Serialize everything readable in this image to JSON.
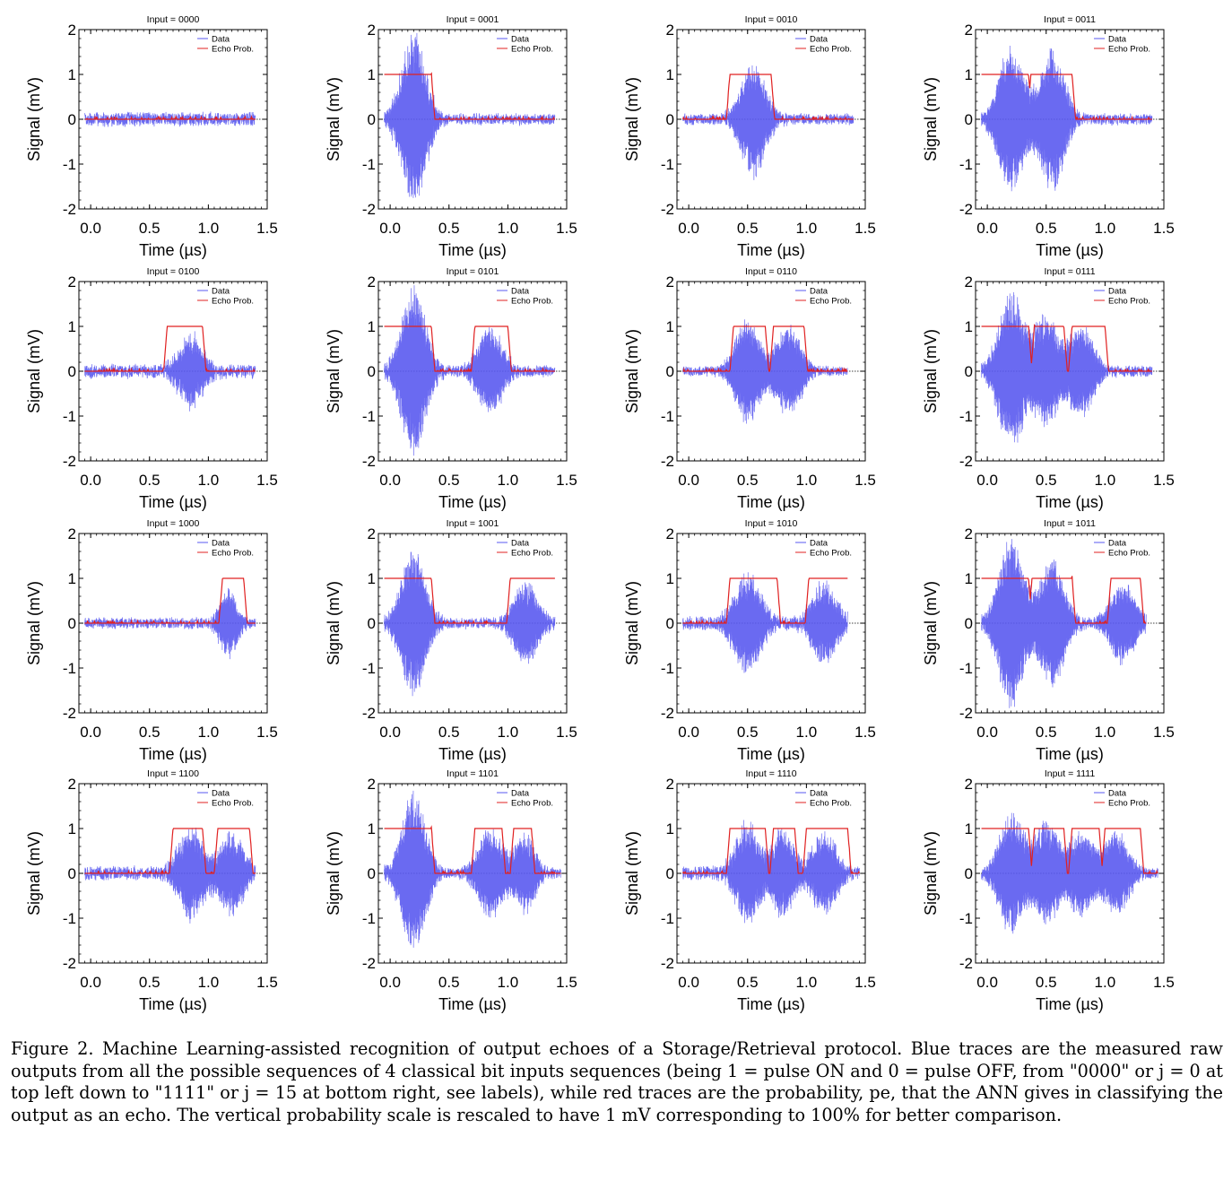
{
  "figure": {
    "caption": "Figure 2. Machine Learning-assisted recognition of output echoes of a Storage/Retrieval protocol. Blue traces are the measured raw outputs from all the possible sequences of 4 classical bit inputs sequences (being 1 = pulse ON and 0 = pulse OFF, from \"0000\" or j = 0 at top left down to \"1111\" or j = 15 at bottom right, see labels), while red traces are the probability, pe, that the ANN gives in classifying the output as an echo. The vertical probability scale is rescaled to have 1 mV corresponding to 100% for better comparison."
  },
  "colors": {
    "data": "#5a5af0",
    "echo_prob": "#e02020",
    "axis": "#000000"
  },
  "chart_data": [
    {
      "type": "line",
      "title": "Input = 0000",
      "xlabel": "Time (µs)",
      "ylabel": "Signal (mV)",
      "xlim": [
        -0.1,
        1.5
      ],
      "ylim": [
        -2,
        2
      ],
      "xticks": [
        "0.0",
        "0.5",
        "1.0",
        "1.5"
      ],
      "yticks": [
        "-2",
        "-1",
        "0",
        "1",
        "2"
      ],
      "legend": [
        "Data",
        "Echo Prob."
      ],
      "legend_position": "top-right",
      "data_range": [
        -0.05,
        1.4
      ],
      "pulses": [],
      "echo_windows": [],
      "noise_mV": 0.1
    },
    {
      "type": "line",
      "title": "Input = 0001",
      "xlabel": "Time (µs)",
      "ylabel": "Signal (mV)",
      "xlim": [
        -0.1,
        1.5
      ],
      "ylim": [
        -2,
        2
      ],
      "xticks": [
        "0.0",
        "0.5",
        "1.0",
        "1.5"
      ],
      "yticks": [
        "-2",
        "-1",
        "0",
        "1",
        "2"
      ],
      "legend": [
        "Data",
        "Echo Prob."
      ],
      "legend_position": "top-right",
      "data_range": [
        -0.05,
        1.4
      ],
      "pulses": [
        {
          "center": 0.2,
          "amplitude": 1.9,
          "width": 0.1
        }
      ],
      "echo_windows": [
        [
          -0.05,
          0.35
        ]
      ],
      "noise_mV": 0.08
    },
    {
      "type": "line",
      "title": "Input = 0010",
      "xlabel": "Time (µs)",
      "ylabel": "Signal (mV)",
      "xlim": [
        -0.1,
        1.5
      ],
      "ylim": [
        -2,
        2
      ],
      "xticks": [
        "0.0",
        "0.5",
        "1.0",
        "1.5"
      ],
      "yticks": [
        "-2",
        "-1",
        "0",
        "1",
        "2"
      ],
      "legend": [
        "Data",
        "Echo Prob."
      ],
      "legend_position": "top-right",
      "data_range": [
        -0.05,
        1.4
      ],
      "pulses": [
        {
          "center": 0.55,
          "amplitude": 1.25,
          "width": 0.1
        }
      ],
      "echo_windows": [
        [
          0.35,
          0.7
        ]
      ],
      "noise_mV": 0.08
    },
    {
      "type": "line",
      "title": "Input = 0011",
      "xlabel": "Time (µs)",
      "ylabel": "Signal (mV)",
      "xlim": [
        -0.1,
        1.5
      ],
      "ylim": [
        -2,
        2
      ],
      "xticks": [
        "0.0",
        "0.5",
        "1.0",
        "1.5"
      ],
      "yticks": [
        "-2",
        "-1",
        "0",
        "1",
        "2"
      ],
      "legend": [
        "Data",
        "Echo Prob."
      ],
      "legend_position": "top-right",
      "data_range": [
        -0.05,
        1.4
      ],
      "pulses": [
        {
          "center": 0.2,
          "amplitude": 1.7,
          "width": 0.1
        },
        {
          "center": 0.55,
          "amplitude": 1.6,
          "width": 0.1
        }
      ],
      "echo_windows": [
        [
          -0.05,
          0.35
        ],
        [
          0.37,
          0.72
        ]
      ],
      "noise_mV": 0.08
    },
    {
      "type": "line",
      "title": "Input = 0100",
      "xlabel": "Time (µs)",
      "ylabel": "Signal (mV)",
      "xlim": [
        -0.1,
        1.5
      ],
      "ylim": [
        -2,
        2
      ],
      "xticks": [
        "0.0",
        "0.5",
        "1.0",
        "1.5"
      ],
      "yticks": [
        "-2",
        "-1",
        "0",
        "1",
        "2"
      ],
      "legend": [
        "Data",
        "Echo Prob."
      ],
      "legend_position": "top-right",
      "data_range": [
        -0.05,
        1.4
      ],
      "pulses": [
        {
          "center": 0.85,
          "amplitude": 0.8,
          "width": 0.1
        }
      ],
      "echo_windows": [
        [
          0.65,
          0.95
        ]
      ],
      "noise_mV": 0.1
    },
    {
      "type": "line",
      "title": "Input = 0101",
      "xlabel": "Time (µs)",
      "ylabel": "Signal (mV)",
      "xlim": [
        -0.1,
        1.5
      ],
      "ylim": [
        -2,
        2
      ],
      "xticks": [
        "0.0",
        "0.5",
        "1.0",
        "1.5"
      ],
      "yticks": [
        "-2",
        "-1",
        "0",
        "1",
        "2"
      ],
      "legend": [
        "Data",
        "Echo Prob."
      ],
      "legend_position": "top-right",
      "data_range": [
        -0.05,
        1.4
      ],
      "pulses": [
        {
          "center": 0.2,
          "amplitude": 1.85,
          "width": 0.1
        },
        {
          "center": 0.85,
          "amplitude": 0.95,
          "width": 0.1
        }
      ],
      "echo_windows": [
        [
          -0.05,
          0.35
        ],
        [
          0.72,
          1.0
        ]
      ],
      "noise_mV": 0.08
    },
    {
      "type": "line",
      "title": "Input = 0110",
      "xlabel": "Time (µs)",
      "ylabel": "Signal (mV)",
      "xlim": [
        -0.1,
        1.5
      ],
      "ylim": [
        -2,
        2
      ],
      "xticks": [
        "0.0",
        "0.5",
        "1.0",
        "1.5"
      ],
      "yticks": [
        "-2",
        "-1",
        "0",
        "1",
        "2"
      ],
      "legend": [
        "Data",
        "Echo Prob."
      ],
      "legend_position": "top-right",
      "data_range": [
        -0.05,
        1.35
      ],
      "pulses": [
        {
          "center": 0.5,
          "amplitude": 1.15,
          "width": 0.1
        },
        {
          "center": 0.85,
          "amplitude": 1.0,
          "width": 0.1
        }
      ],
      "echo_windows": [
        [
          0.38,
          0.65
        ],
        [
          0.72,
          0.98
        ]
      ],
      "noise_mV": 0.07
    },
    {
      "type": "line",
      "title": "Input = 0111",
      "xlabel": "Time (µs)",
      "ylabel": "Signal (mV)",
      "xlim": [
        -0.1,
        1.5
      ],
      "ylim": [
        -2,
        2
      ],
      "xticks": [
        "0.0",
        "0.5",
        "1.0",
        "1.5"
      ],
      "yticks": [
        "-2",
        "-1",
        "0",
        "1",
        "2"
      ],
      "legend": [
        "Data",
        "Echo Prob."
      ],
      "legend_position": "top-right",
      "data_range": [
        -0.05,
        1.4
      ],
      "pulses": [
        {
          "center": 0.2,
          "amplitude": 1.75,
          "width": 0.1
        },
        {
          "center": 0.5,
          "amplitude": 1.2,
          "width": 0.1
        },
        {
          "center": 0.8,
          "amplitude": 1.0,
          "width": 0.1
        }
      ],
      "echo_windows": [
        [
          -0.05,
          0.35
        ],
        [
          0.4,
          0.65
        ],
        [
          0.72,
          1.0
        ]
      ],
      "noise_mV": 0.08
    },
    {
      "type": "line",
      "title": "Input = 1000",
      "xlabel": "Time (µs)",
      "ylabel": "Signal (mV)",
      "xlim": [
        -0.1,
        1.5
      ],
      "ylim": [
        -2,
        2
      ],
      "xticks": [
        "0.0",
        "0.5",
        "1.0",
        "1.5"
      ],
      "yticks": [
        "-2",
        "-1",
        "0",
        "1",
        "2"
      ],
      "legend": [
        "Data",
        "Echo Prob."
      ],
      "legend_position": "top-right",
      "data_range": [
        -0.05,
        1.4
      ],
      "pulses": [
        {
          "center": 1.17,
          "amplitude": 0.75,
          "width": 0.07
        }
      ],
      "echo_windows": [
        [
          1.12,
          1.3
        ]
      ],
      "noise_mV": 0.08
    },
    {
      "type": "line",
      "title": "Input = 1001",
      "xlabel": "Time (µs)",
      "ylabel": "Signal (mV)",
      "xlim": [
        -0.1,
        1.5
      ],
      "ylim": [
        -2,
        2
      ],
      "xticks": [
        "0.0",
        "0.5",
        "1.0",
        "1.5"
      ],
      "yticks": [
        "-2",
        "-1",
        "0",
        "1",
        "2"
      ],
      "legend": [
        "Data",
        "Echo Prob."
      ],
      "legend_position": "top-right",
      "data_range": [
        -0.05,
        1.4
      ],
      "pulses": [
        {
          "center": 0.2,
          "amplitude": 1.6,
          "width": 0.1
        },
        {
          "center": 1.15,
          "amplitude": 0.9,
          "width": 0.1
        }
      ],
      "echo_windows": [
        [
          -0.05,
          0.35
        ],
        [
          1.02,
          1.4
        ]
      ],
      "noise_mV": 0.08
    },
    {
      "type": "line",
      "title": "Input = 1010",
      "xlabel": "Time (µs)",
      "ylabel": "Signal (mV)",
      "xlim": [
        -0.1,
        1.5
      ],
      "ylim": [
        -2,
        2
      ],
      "xticks": [
        "0.0",
        "0.5",
        "1.0",
        "1.5"
      ],
      "yticks": [
        "-2",
        "-1",
        "0",
        "1",
        "2"
      ],
      "legend": [
        "Data",
        "Echo Prob."
      ],
      "legend_position": "top-right",
      "data_range": [
        -0.05,
        1.35
      ],
      "pulses": [
        {
          "center": 0.5,
          "amplitude": 1.1,
          "width": 0.11
        },
        {
          "center": 1.15,
          "amplitude": 0.9,
          "width": 0.1
        }
      ],
      "echo_windows": [
        [
          0.35,
          0.75
        ],
        [
          1.02,
          1.35
        ]
      ],
      "noise_mV": 0.1
    },
    {
      "type": "line",
      "title": "Input = 1011",
      "xlabel": "Time (µs)",
      "ylabel": "Signal (mV)",
      "xlim": [
        -0.1,
        1.5
      ],
      "ylim": [
        -2,
        2
      ],
      "xticks": [
        "0.0",
        "0.5",
        "1.0",
        "1.5"
      ],
      "yticks": [
        "-2",
        "-1",
        "0",
        "1",
        "2"
      ],
      "legend": [
        "Data",
        "Echo Prob."
      ],
      "legend_position": "top-right",
      "data_range": [
        -0.05,
        1.35
      ],
      "pulses": [
        {
          "center": 0.2,
          "amplitude": 1.9,
          "width": 0.1
        },
        {
          "center": 0.55,
          "amplitude": 1.4,
          "width": 0.1
        },
        {
          "center": 1.15,
          "amplitude": 0.9,
          "width": 0.1
        }
      ],
      "echo_windows": [
        [
          -0.05,
          0.35
        ],
        [
          0.38,
          0.72
        ],
        [
          1.05,
          1.3
        ]
      ],
      "noise_mV": 0.08
    },
    {
      "type": "line",
      "title": "Input = 1100",
      "xlabel": "Time (µs)",
      "ylabel": "Signal (mV)",
      "xlim": [
        -0.1,
        1.5
      ],
      "ylim": [
        -2,
        2
      ],
      "xticks": [
        "0.0",
        "0.5",
        "1.0",
        "1.5"
      ],
      "yticks": [
        "-2",
        "-1",
        "0",
        "1",
        "2"
      ],
      "legend": [
        "Data",
        "Echo Prob."
      ],
      "legend_position": "top-right",
      "data_range": [
        -0.05,
        1.4
      ],
      "pulses": [
        {
          "center": 0.85,
          "amplitude": 1.0,
          "width": 0.1
        },
        {
          "center": 1.2,
          "amplitude": 0.9,
          "width": 0.1
        }
      ],
      "echo_windows": [
        [
          0.7,
          0.95
        ],
        [
          1.08,
          1.35
        ]
      ],
      "noise_mV": 0.1
    },
    {
      "type": "line",
      "title": "Input = 1101",
      "xlabel": "Time (µs)",
      "ylabel": "Signal (mV)",
      "xlim": [
        -0.1,
        1.5
      ],
      "ylim": [
        -2,
        2
      ],
      "xticks": [
        "0.0",
        "0.5",
        "1.0",
        "1.5"
      ],
      "yticks": [
        "-2",
        "-1",
        "0",
        "1",
        "2"
      ],
      "legend": [
        "Data",
        "Echo Prob."
      ],
      "legend_position": "top-right",
      "data_range": [
        -0.05,
        1.45
      ],
      "pulses": [
        {
          "center": 0.2,
          "amplitude": 1.75,
          "width": 0.1
        },
        {
          "center": 0.85,
          "amplitude": 1.0,
          "width": 0.1
        },
        {
          "center": 1.15,
          "amplitude": 0.85,
          "width": 0.08
        }
      ],
      "echo_windows": [
        [
          -0.05,
          0.35
        ],
        [
          0.72,
          0.95
        ],
        [
          1.05,
          1.2
        ]
      ],
      "noise_mV": 0.08
    },
    {
      "type": "line",
      "title": "Input = 1110",
      "xlabel": "Time (µs)",
      "ylabel": "Signal (mV)",
      "xlim": [
        -0.1,
        1.5
      ],
      "ylim": [
        -2,
        2
      ],
      "xticks": [
        "0.0",
        "0.5",
        "1.0",
        "1.5"
      ],
      "yticks": [
        "-2",
        "-1",
        "0",
        "1",
        "2"
      ],
      "legend": [
        "Data",
        "Echo Prob."
      ],
      "legend_position": "top-right",
      "data_range": [
        -0.05,
        1.45
      ],
      "pulses": [
        {
          "center": 0.5,
          "amplitude": 1.1,
          "width": 0.1
        },
        {
          "center": 0.8,
          "amplitude": 1.0,
          "width": 0.08
        },
        {
          "center": 1.15,
          "amplitude": 0.9,
          "width": 0.1
        }
      ],
      "echo_windows": [
        [
          0.35,
          0.65
        ],
        [
          0.72,
          0.9
        ],
        [
          1.0,
          1.35
        ]
      ],
      "noise_mV": 0.1
    },
    {
      "type": "line",
      "title": "Input = 1111",
      "xlabel": "Time (µs)",
      "ylabel": "Signal (mV)",
      "xlim": [
        -0.1,
        1.5
      ],
      "ylim": [
        -2,
        2
      ],
      "xticks": [
        "0.0",
        "0.5",
        "1.0",
        "1.5"
      ],
      "yticks": [
        "-2",
        "-1",
        "0",
        "1",
        "2"
      ],
      "legend": [
        "Data",
        "Echo Prob."
      ],
      "legend_position": "top-right",
      "data_range": [
        -0.05,
        1.45
      ],
      "pulses": [
        {
          "center": 0.2,
          "amplitude": 1.3,
          "width": 0.1
        },
        {
          "center": 0.5,
          "amplitude": 1.1,
          "width": 0.1
        },
        {
          "center": 0.8,
          "amplitude": 0.9,
          "width": 0.1
        },
        {
          "center": 1.1,
          "amplitude": 0.9,
          "width": 0.1
        }
      ],
      "echo_windows": [
        [
          -0.05,
          0.35
        ],
        [
          0.4,
          0.65
        ],
        [
          0.72,
          0.95
        ],
        [
          1.0,
          1.3
        ]
      ],
      "noise_mV": 0.08
    }
  ]
}
